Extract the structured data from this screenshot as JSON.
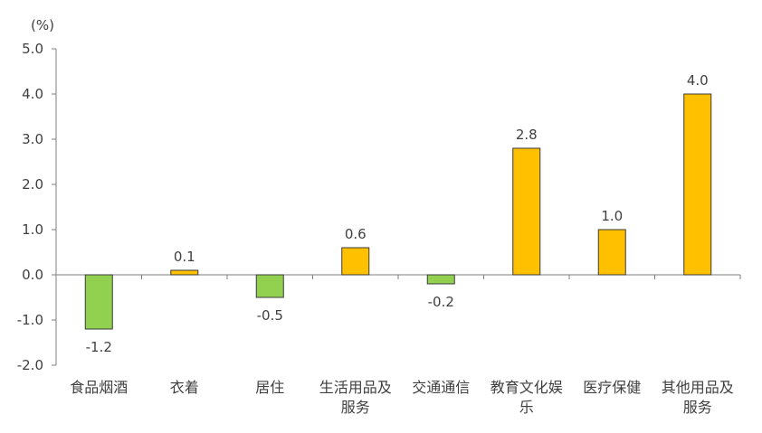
{
  "chart_data": {
    "type": "bar",
    "unit": "(%)",
    "categories": [
      [
        "食品烟酒"
      ],
      [
        "衣着"
      ],
      [
        "居住"
      ],
      [
        "生活用品及",
        "服务"
      ],
      [
        "交通通信"
      ],
      [
        "教育文化娱",
        "乐"
      ],
      [
        "医疗保健"
      ],
      [
        "其他用品及",
        "服务"
      ]
    ],
    "values": [
      -1.2,
      0.1,
      -0.5,
      0.6,
      -0.2,
      2.8,
      1.0,
      4.0
    ],
    "data_labels": [
      "-1.2",
      "0.1",
      "-0.5",
      "0.6",
      "-0.2",
      "2.8",
      "1.0",
      "4.0"
    ],
    "y_ticks": [
      "5.0",
      "4.0",
      "3.0",
      "2.0",
      "1.0",
      "0.0",
      "-1.0",
      "-2.0"
    ],
    "ylim": [
      -2.0,
      5.0
    ],
    "grid": false,
    "legend": "none",
    "colors": {
      "positive": "#FFC000",
      "negative": "#92D050"
    }
  }
}
